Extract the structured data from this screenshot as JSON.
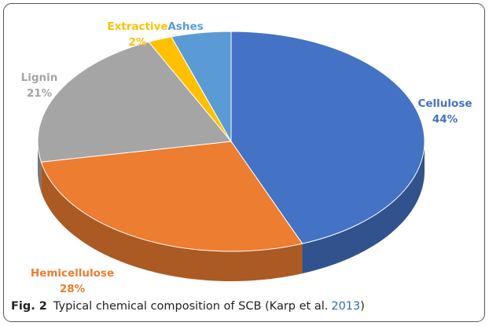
{
  "chart_data": {
    "type": "pie",
    "categories": [
      "Cellulose",
      "Hemicellulose",
      "Lignin",
      "Extractive",
      "Ashes"
    ],
    "values": [
      44,
      28,
      21,
      2,
      5
    ],
    "value_labels": [
      "44%",
      "28%",
      "21%",
      "2%",
      "5%"
    ],
    "colors": [
      "#4472c4",
      "#ed7d31",
      "#a5a5a5",
      "#ffc000",
      "#5b9bd5"
    ],
    "caption": {
      "label": "Fig. 2",
      "text": "Typical chemical composition of SCB (Karp et al.",
      "link": "2013",
      "end": ")"
    }
  }
}
